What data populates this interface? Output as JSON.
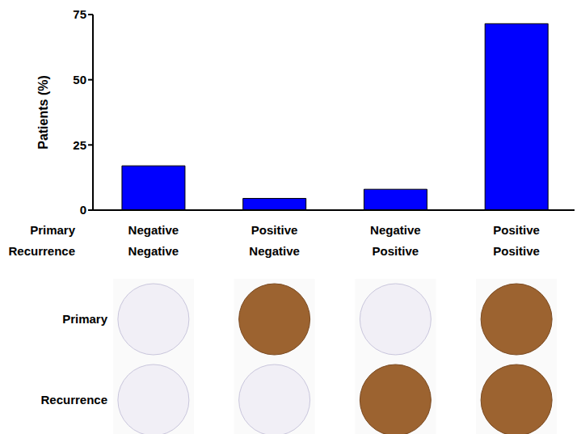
{
  "chart_data": {
    "type": "bar",
    "y_label": "Patients (%)",
    "category_rows": [
      "Primary",
      "Recurrence"
    ],
    "categories": [
      [
        "Negative",
        "Negative"
      ],
      [
        "Positive",
        "Negative"
      ],
      [
        "Negative",
        "Positive"
      ],
      [
        "Positive",
        "Positive"
      ]
    ],
    "values": [
      17,
      4.5,
      8,
      71.5
    ],
    "color": "#0000ff",
    "ylim": [
      0,
      75
    ],
    "yticks": [
      0,
      25,
      50,
      75
    ],
    "grid": false,
    "panel": {
      "row_labels": [
        "Primary",
        "Recurrence"
      ]
    }
  }
}
